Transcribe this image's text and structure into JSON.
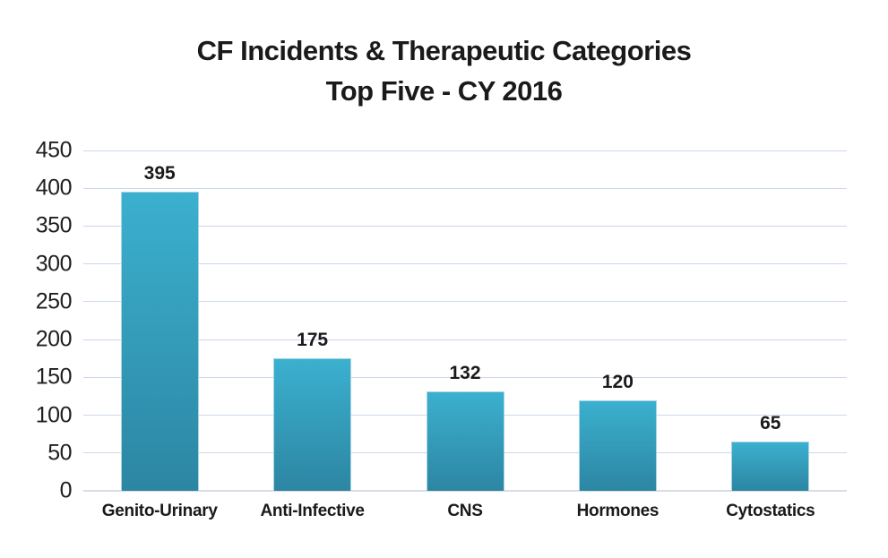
{
  "title": {
    "line1": "CF Incidents & Therapeutic Categories",
    "line2": "Top Five - CY 2016"
  },
  "chart_data": {
    "type": "bar",
    "title": "CF Incidents & Therapeutic Categories Top Five - CY 2016",
    "categories": [
      "Genito-Urinary",
      "Anti-Infective",
      "CNS",
      "Hormones",
      "Cytostatics"
    ],
    "values": [
      395,
      175,
      132,
      120,
      65
    ],
    "data_labels": [
      "395",
      "175",
      "132",
      "120",
      "65"
    ],
    "xlabel": "",
    "ylabel": "",
    "ylim": [
      0,
      450
    ],
    "yticks": [
      0,
      50,
      100,
      150,
      200,
      250,
      300,
      350,
      400,
      450
    ],
    "grid": true,
    "legend": false,
    "colors": {
      "bar_gradient_top": "#3bb0cf",
      "bar_gradient_bottom": "#2c86a2",
      "bar_border": "#a7d4e4",
      "gridline": "#ccd8ea",
      "text": "#1a1a1a",
      "background": "#ffffff"
    }
  }
}
